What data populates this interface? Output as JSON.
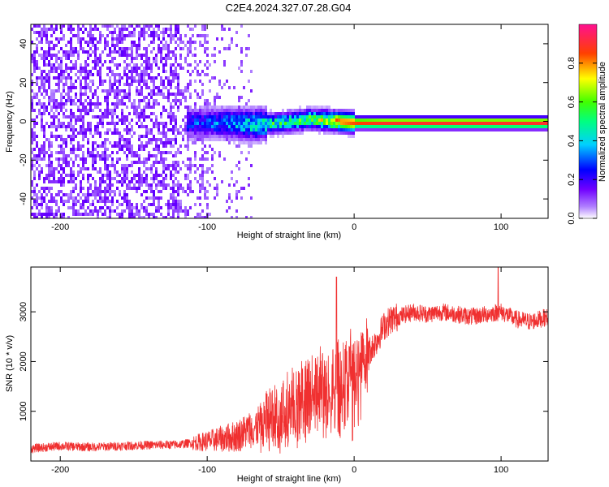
{
  "chart_data": [
    {
      "type": "heatmap",
      "title": "C2E4.2024.327.07.28.G04",
      "xlabel": "Height of straight line (km)",
      "ylabel": "Frequency (Hz)",
      "xlim": [
        -220,
        132
      ],
      "ylim": [
        -50,
        50
      ],
      "x_ticks": [
        -200,
        -100,
        0,
        100
      ],
      "y_ticks": [
        -40,
        -20,
        0,
        20,
        40
      ],
      "colorbar": {
        "label": "Normalized spectral amplitude",
        "range": [
          0,
          1
        ],
        "ticks": [
          "0.0",
          "0.2",
          "0.4",
          "0.6",
          "0.8"
        ],
        "colors": [
          "#ffffff",
          "#8000ff",
          "#0000ff",
          "#00ffff",
          "#00ff00",
          "#ffff00",
          "#ff0000",
          "#ff0080"
        ]
      },
      "ridge": {
        "description_points_x": [
          -110,
          -90,
          -70,
          -50,
          -30,
          -15,
          0,
          20,
          60,
          100,
          132
        ],
        "center_freq_hz": [
          0,
          0,
          -1,
          0,
          2,
          1,
          0,
          0,
          0,
          0,
          0
        ],
        "peak_amplitude": [
          0.3,
          0.35,
          0.5,
          0.55,
          0.6,
          0.8,
          0.85,
          0.9,
          0.9,
          0.9,
          0.9
        ]
      }
    },
    {
      "type": "line",
      "title": "",
      "xlabel": "Height of straight line (km)",
      "ylabel": "SNR (10 * v/v)",
      "xlim": [
        -220,
        132
      ],
      "ylim": [
        0,
        3900
      ],
      "x_ticks": [
        -200,
        -100,
        0,
        100
      ],
      "y_ticks": [
        1000,
        2000,
        3000
      ],
      "series": [
        {
          "color": "#f03030",
          "x": [
            -220,
            -200,
            -180,
            -160,
            -140,
            -120,
            -100,
            -90,
            -80,
            -70,
            -60,
            -50,
            -40,
            -30,
            -20,
            -15,
            -10,
            -5,
            0,
            5,
            10,
            15,
            20,
            25,
            30,
            40,
            50,
            60,
            70,
            80,
            90,
            100,
            110,
            120,
            132
          ],
          "values": [
            250,
            300,
            280,
            300,
            320,
            330,
            400,
            450,
            500,
            650,
            800,
            1000,
            1200,
            1400,
            1550,
            1700,
            1600,
            1800,
            1900,
            2000,
            2200,
            2400,
            2700,
            2850,
            2900,
            3000,
            2950,
            3000,
            2950,
            2900,
            2950,
            3000,
            2850,
            2800,
            2900
          ]
        }
      ],
      "spikes": [
        {
          "x": -12,
          "y": 3700
        },
        {
          "x": 98,
          "y": 3900
        }
      ]
    }
  ]
}
